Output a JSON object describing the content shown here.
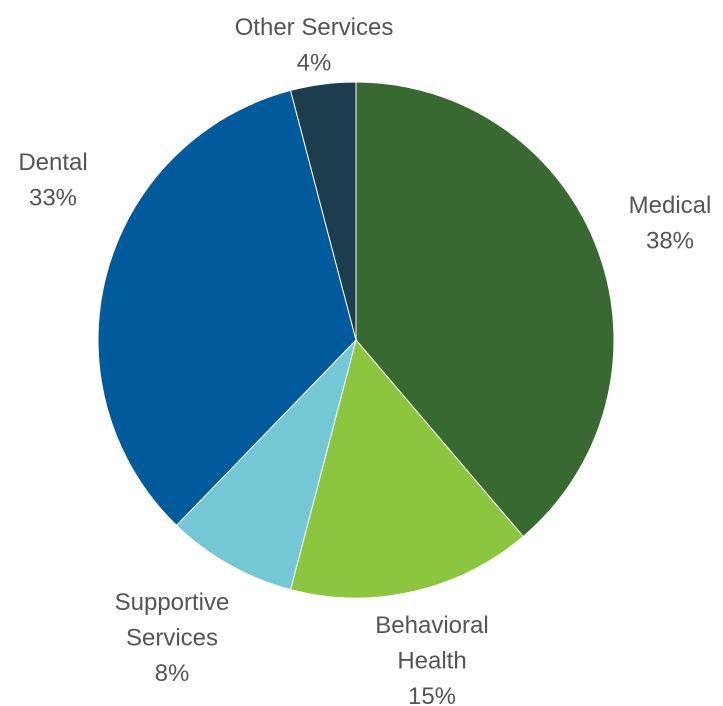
{
  "chart_data": {
    "type": "pie",
    "title": "",
    "start_angle_deg": 0,
    "direction": "clockwise",
    "slices": [
      {
        "label": [
          "Medical"
        ],
        "percent_label": "38%",
        "value": 38,
        "color": "#376931"
      },
      {
        "label": [
          "Behavioral",
          "Health"
        ],
        "percent_label": "15%",
        "value": 15,
        "color": "#8cc63f"
      },
      {
        "label": [
          "Supportive",
          "Services"
        ],
        "percent_label": "8%",
        "value": 8,
        "color": "#74c7d4"
      },
      {
        "label": [
          "Dental"
        ],
        "percent_label": "33%",
        "value": 33,
        "color": "#015a9c"
      },
      {
        "label": [
          "Other Services"
        ],
        "percent_label": "4%",
        "value": 4,
        "color": "#1d3c4d"
      }
    ]
  }
}
